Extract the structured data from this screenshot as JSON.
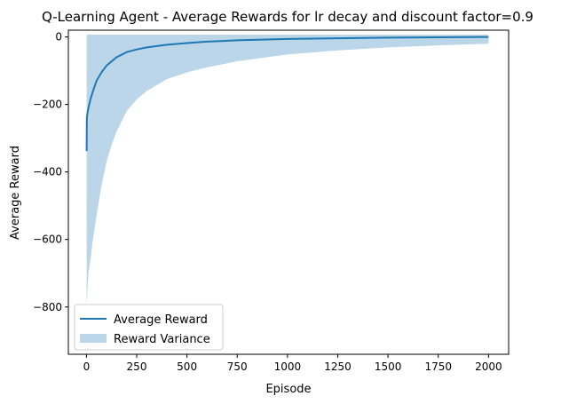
{
  "chart_data": {
    "type": "area",
    "title": "Q-Learning Agent - Average Rewards for lr decay and discount factor=0.9",
    "xlabel": "Episode",
    "ylabel": "Average Reward",
    "xlim": [
      -90,
      2100
    ],
    "ylim": [
      -940,
      20
    ],
    "xticks": [
      0,
      250,
      500,
      750,
      1000,
      1250,
      1500,
      1750,
      2000
    ],
    "yticks": [
      -800,
      -600,
      -400,
      -200,
      0
    ],
    "xtick_labels": [
      "0",
      "250",
      "500",
      "750",
      "1000",
      "1250",
      "1500",
      "1750",
      "2000"
    ],
    "ytick_labels": [
      "−800",
      "−600",
      "−400",
      "−200",
      "0"
    ],
    "grid": false,
    "legend_position": "lower-left",
    "series": [
      {
        "name": "Average Reward",
        "kind": "line",
        "color": "#1f77b4",
        "x": [
          1,
          2,
          5,
          10,
          20,
          30,
          50,
          75,
          100,
          150,
          200,
          250,
          300,
          400,
          500,
          600,
          750,
          1000,
          1250,
          1500,
          1750,
          2000
        ],
        "y": [
          -338,
          -240,
          -225,
          -210,
          -185,
          -165,
          -130,
          -105,
          -85,
          -60,
          -45,
          -37,
          -31,
          -23,
          -18,
          -14,
          -10,
          -6,
          -4,
          -2,
          -1,
          0
        ]
      },
      {
        "name": "Reward Variance",
        "kind": "band",
        "color": "#1f77b4",
        "opacity": 0.3,
        "x": [
          1,
          5,
          10,
          20,
          30,
          50,
          75,
          100,
          125,
          150,
          200,
          250,
          300,
          400,
          500,
          600,
          750,
          1000,
          1250,
          1500,
          1750,
          2000
        ],
        "upper": [
          7,
          7,
          7,
          7,
          7,
          7,
          7,
          7,
          7,
          7,
          7,
          7,
          7,
          7,
          7,
          7,
          7,
          7,
          7,
          7,
          7,
          7
        ],
        "lower": [
          -800,
          -750,
          -700,
          -660,
          -610,
          -530,
          -440,
          -370,
          -320,
          -280,
          -220,
          -185,
          -160,
          -125,
          -105,
          -90,
          -72,
          -52,
          -40,
          -31,
          -25,
          -20
        ]
      }
    ]
  }
}
